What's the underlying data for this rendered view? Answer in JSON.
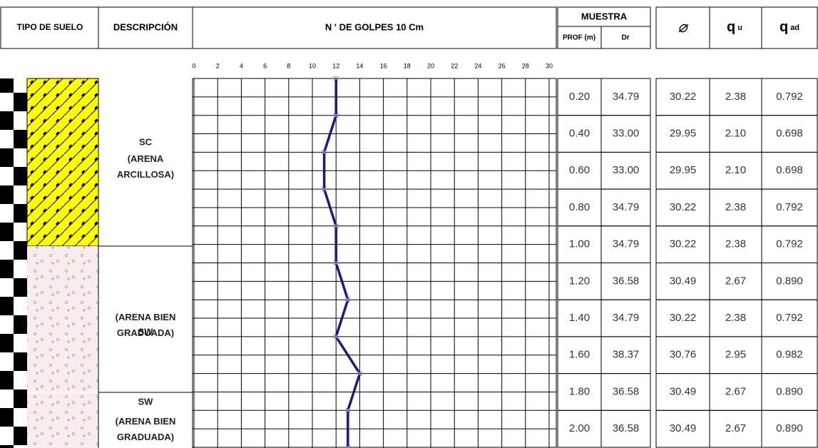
{
  "header": {
    "tipo": "TIPO DE SUELO",
    "descripcion": "DESCRIPCIÓN",
    "muestra": "MUESTRA",
    "prof": "PROF (m)",
    "dr": "Dr",
    "phi": "⌀",
    "qu": "q",
    "qu_sub": "u",
    "qad": "q",
    "qad_sub": "ad"
  },
  "layers": [
    {
      "code": "SC",
      "name": "(ARENA ARCILLOSA)"
    },
    {
      "code": "SW",
      "name": "(ARENA BIEN GRADUADA)"
    },
    {
      "code": "SW",
      "name": "(ARENA BIEN GRADUADA)"
    }
  ],
  "table": {
    "rows": [
      [
        "0.20",
        "34.79",
        "30.22",
        "2.38",
        "0.792"
      ],
      [
        "0.40",
        "33.00",
        "29.95",
        "2.10",
        "0.698"
      ],
      [
        "0.60",
        "33.00",
        "29.95",
        "2.10",
        "0.698"
      ],
      [
        "0.80",
        "34.79",
        "30.22",
        "2.38",
        "0.792"
      ],
      [
        "1.00",
        "34.79",
        "30.22",
        "2.38",
        "0.792"
      ],
      [
        "1.20",
        "36.58",
        "30.49",
        "2.67",
        "0.890"
      ],
      [
        "1.40",
        "34.79",
        "30.22",
        "2.38",
        "0.792"
      ],
      [
        "1.60",
        "38.37",
        "30.76",
        "2.95",
        "0.982"
      ],
      [
        "1.80",
        "36.58",
        "30.49",
        "2.67",
        "0.890"
      ],
      [
        "2.00",
        "36.58",
        "30.49",
        "2.67",
        "0.890"
      ]
    ]
  },
  "chart_data": {
    "type": "line",
    "title": "N ' DE GOLPES 10 Cm",
    "xlim": [
      0,
      30
    ],
    "xticks": [
      0,
      2,
      4,
      6,
      8,
      10,
      12,
      14,
      16,
      18,
      20,
      22,
      24,
      26,
      28,
      30
    ],
    "ylim": [
      0,
      2.0
    ],
    "depths": [
      0,
      0.2,
      0.4,
      0.6,
      0.8,
      1.0,
      1.2,
      1.4,
      1.6,
      1.8,
      2.0
    ],
    "values": [
      12,
      12,
      11,
      11,
      12,
      12,
      13,
      12,
      14,
      13,
      13
    ],
    "color": "#1a1a80"
  }
}
